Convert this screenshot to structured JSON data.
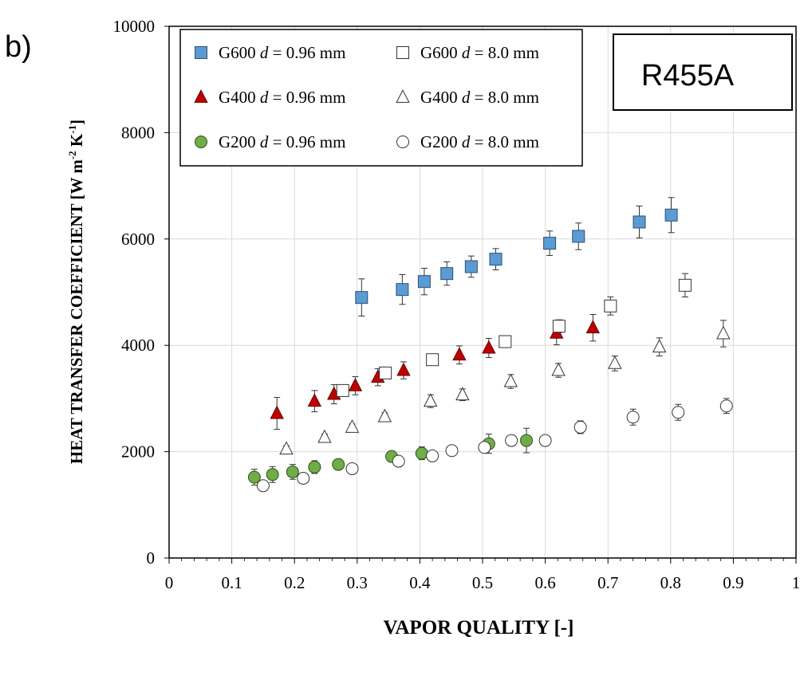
{
  "panel_label": "b)",
  "chart_data": {
    "type": "scatter",
    "refrigerant_label": "R455A",
    "xlabel": "VAPOR QUALITY [-]",
    "ylabel": {
      "main": "HEAT TRANSFER COEFFICIENT [W m",
      "exp1": "-2",
      "mid": " K",
      "exp2": "-1",
      "end": "]"
    },
    "xlim": [
      0,
      1
    ],
    "ylim": [
      0,
      10000
    ],
    "xticks": [
      "0",
      "0.1",
      "0.2",
      "0.3",
      "0.4",
      "0.5",
      "0.6",
      "0.7",
      "0.8",
      "0.9",
      "1"
    ],
    "yticks": [
      "0",
      "2000",
      "4000",
      "6000",
      "8000",
      "10000"
    ],
    "grid": true,
    "legend_position": "top-left",
    "series": [
      {
        "label": "G600",
        "d_value": "= 0.96 mm",
        "marker": "square",
        "fill": "#5b9bd5",
        "stroke": "#2f4f6f",
        "points": [
          {
            "x": 0.307,
            "y": 4900,
            "err": 350
          },
          {
            "x": 0.372,
            "y": 5050,
            "err": 280
          },
          {
            "x": 0.407,
            "y": 5200,
            "err": 250
          },
          {
            "x": 0.443,
            "y": 5350,
            "err": 220
          },
          {
            "x": 0.482,
            "y": 5480,
            "err": 200
          },
          {
            "x": 0.521,
            "y": 5620,
            "err": 200
          },
          {
            "x": 0.607,
            "y": 5920,
            "err": 230
          },
          {
            "x": 0.653,
            "y": 6050,
            "err": 250
          },
          {
            "x": 0.75,
            "y": 6320,
            "err": 300
          },
          {
            "x": 0.801,
            "y": 6450,
            "err": 330
          }
        ]
      },
      {
        "label": "G400",
        "d_value": "= 0.96 mm",
        "marker": "triangle",
        "fill": "#c00000",
        "stroke": "#600000",
        "points": [
          {
            "x": 0.172,
            "y": 2720,
            "err": 300
          },
          {
            "x": 0.232,
            "y": 2950,
            "err": 200
          },
          {
            "x": 0.263,
            "y": 3080,
            "err": 180
          },
          {
            "x": 0.297,
            "y": 3240,
            "err": 170
          },
          {
            "x": 0.333,
            "y": 3400,
            "err": 160
          },
          {
            "x": 0.374,
            "y": 3530,
            "err": 160
          },
          {
            "x": 0.463,
            "y": 3820,
            "err": 170
          },
          {
            "x": 0.51,
            "y": 3950,
            "err": 180
          },
          {
            "x": 0.618,
            "y": 4230,
            "err": 220
          },
          {
            "x": 0.676,
            "y": 4330,
            "err": 250
          }
        ]
      },
      {
        "label": "G200",
        "d_value": "= 0.96 mm",
        "marker": "circle",
        "fill": "#70ad47",
        "stroke": "#2f4f1f",
        "points": [
          {
            "x": 0.136,
            "y": 1520,
            "err": 150
          },
          {
            "x": 0.165,
            "y": 1570,
            "err": 150
          },
          {
            "x": 0.197,
            "y": 1620,
            "err": 140
          },
          {
            "x": 0.232,
            "y": 1710,
            "err": 120
          },
          {
            "x": 0.27,
            "y": 1760,
            "err": 100
          },
          {
            "x": 0.355,
            "y": 1910,
            "err": 100
          },
          {
            "x": 0.403,
            "y": 1970,
            "err": 120
          },
          {
            "x": 0.51,
            "y": 2150,
            "err": 180
          },
          {
            "x": 0.57,
            "y": 2210,
            "err": 230
          }
        ]
      },
      {
        "label": "G600",
        "d_value": "=  8.0 mm",
        "marker": "square",
        "fill": "#ffffff",
        "stroke": "#333333",
        "points": [
          {
            "x": 0.277,
            "y": 3150,
            "err": 100
          },
          {
            "x": 0.345,
            "y": 3480,
            "err": 80
          },
          {
            "x": 0.42,
            "y": 3730,
            "err": 70
          },
          {
            "x": 0.536,
            "y": 4070,
            "err": 60
          },
          {
            "x": 0.622,
            "y": 4360,
            "err": 120
          },
          {
            "x": 0.704,
            "y": 4740,
            "err": 170
          },
          {
            "x": 0.823,
            "y": 5130,
            "err": 220
          }
        ]
      },
      {
        "label": "G400",
        "d_value": "= 8.0 mm",
        "marker": "triangle",
        "fill": "#ffffff",
        "stroke": "#333333",
        "points": [
          {
            "x": 0.187,
            "y": 2050,
            "err": 60
          },
          {
            "x": 0.248,
            "y": 2270,
            "err": 60
          },
          {
            "x": 0.292,
            "y": 2460,
            "err": 60
          },
          {
            "x": 0.344,
            "y": 2660,
            "err": 70
          },
          {
            "x": 0.417,
            "y": 2950,
            "err": 120
          },
          {
            "x": 0.468,
            "y": 3070,
            "err": 110
          },
          {
            "x": 0.545,
            "y": 3320,
            "err": 130
          },
          {
            "x": 0.621,
            "y": 3530,
            "err": 130
          },
          {
            "x": 0.711,
            "y": 3660,
            "err": 140
          },
          {
            "x": 0.782,
            "y": 3970,
            "err": 170
          },
          {
            "x": 0.884,
            "y": 4220,
            "err": 250
          }
        ]
      },
      {
        "label": "G200",
        "d_value": "= 8.0 mm",
        "marker": "circle",
        "fill": "#ffffff",
        "stroke": "#333333",
        "points": [
          {
            "x": 0.15,
            "y": 1360,
            "err": 60
          },
          {
            "x": 0.214,
            "y": 1500,
            "err": 60
          },
          {
            "x": 0.292,
            "y": 1680,
            "err": 60
          },
          {
            "x": 0.366,
            "y": 1820,
            "err": 70
          },
          {
            "x": 0.42,
            "y": 1920,
            "err": 70
          },
          {
            "x": 0.451,
            "y": 2020,
            "err": 70
          },
          {
            "x": 0.503,
            "y": 2080,
            "err": 80
          },
          {
            "x": 0.546,
            "y": 2210,
            "err": 100
          },
          {
            "x": 0.6,
            "y": 2210,
            "err": 80
          },
          {
            "x": 0.656,
            "y": 2460,
            "err": 120
          },
          {
            "x": 0.74,
            "y": 2650,
            "err": 150
          },
          {
            "x": 0.812,
            "y": 2740,
            "err": 150
          },
          {
            "x": 0.889,
            "y": 2860,
            "err": 140
          }
        ]
      }
    ]
  }
}
